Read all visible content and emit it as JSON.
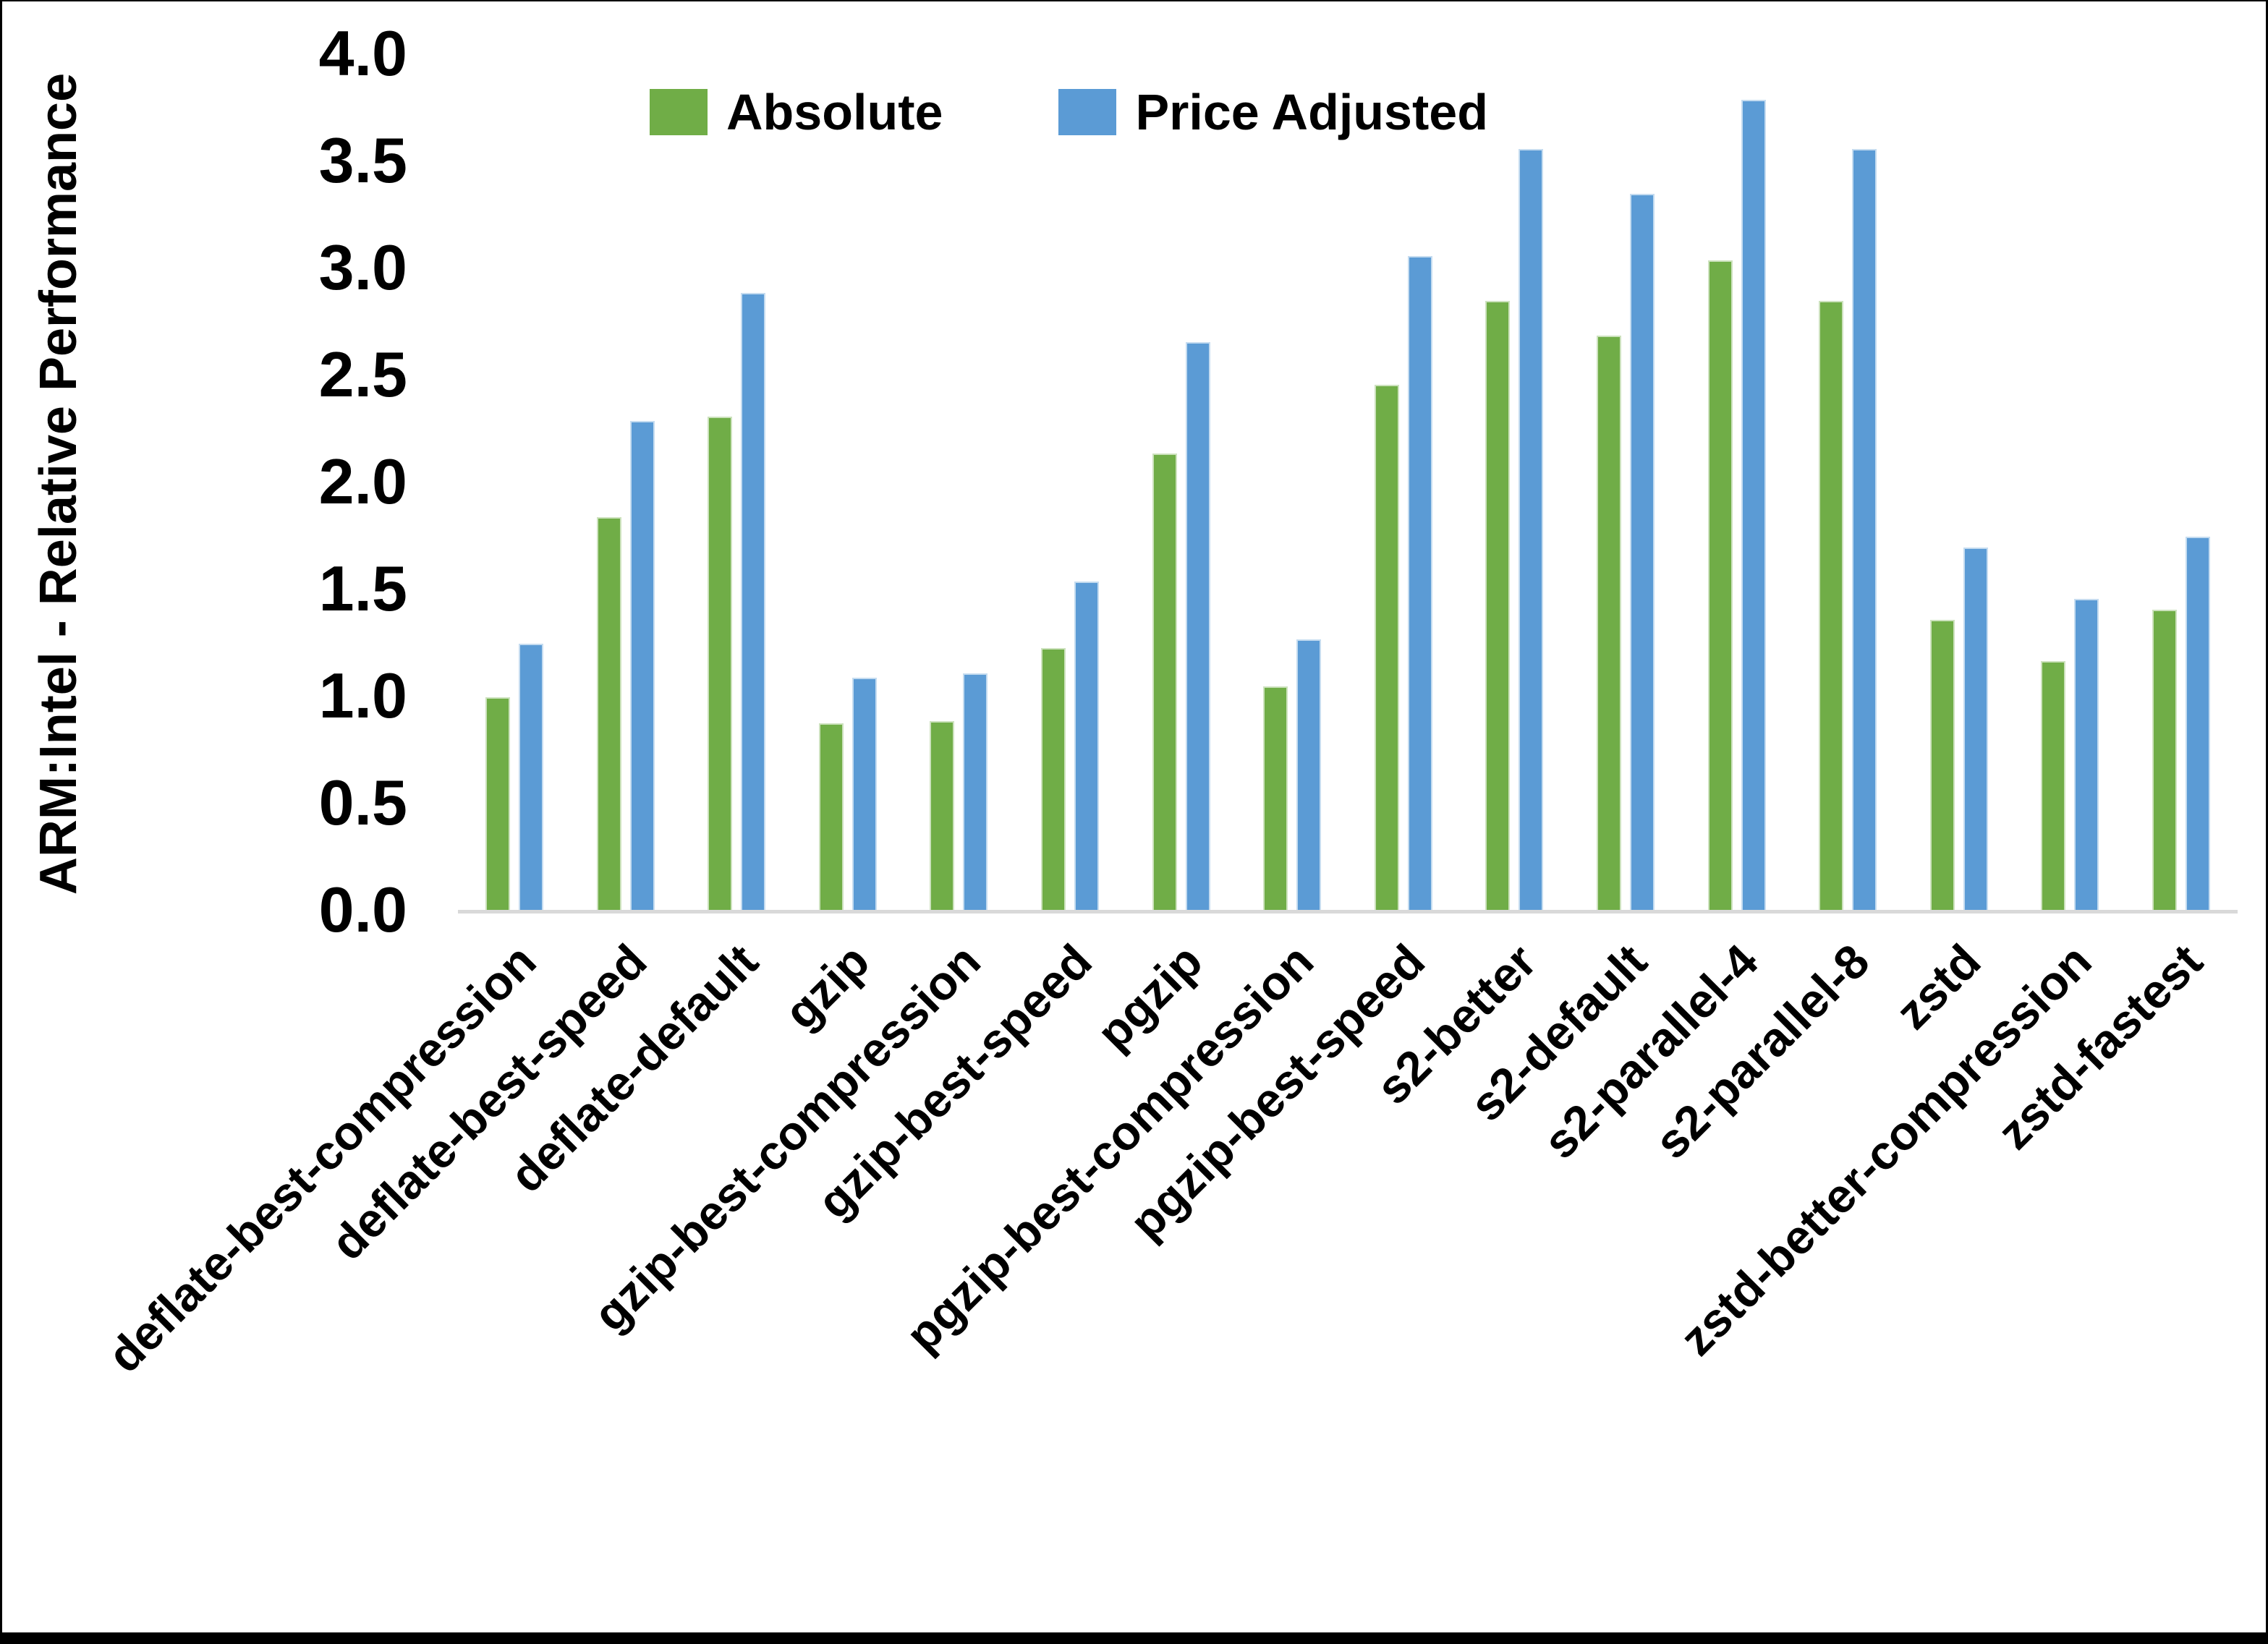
{
  "chart_data": {
    "type": "bar",
    "title": "",
    "xlabel": "",
    "ylabel": "ARM:Intel - Relative Performance",
    "ylim": [
      0.0,
      4.0
    ],
    "ytick_step": 0.5,
    "yticks": [
      "0.0",
      "0.5",
      "1.0",
      "1.5",
      "2.0",
      "2.5",
      "3.0",
      "3.5",
      "4.0"
    ],
    "grid": false,
    "legend_position": "top-center",
    "axis_line_color": "#D9D9D9",
    "text_color": "#000000",
    "categories": [
      "deflate-best-compression",
      "deflate-best-speed",
      "deflate-default",
      "gzip",
      "gzip-best-compression",
      "gzip-best-speed",
      "pgzip",
      "pgzip-best-compression",
      "pgzip-best-speed",
      "s2-better",
      "s2-default",
      "s2-parallel-4",
      "s2-parallel-8",
      "zstd",
      "zstd-better-compression",
      "zstd-fastest"
    ],
    "series": [
      {
        "name": "Absolute",
        "color": "#70AD47",
        "values": [
          1.0,
          1.84,
          2.31,
          0.88,
          0.89,
          1.23,
          2.14,
          1.05,
          2.46,
          2.85,
          2.69,
          3.04,
          2.85,
          1.36,
          1.17,
          1.41
        ]
      },
      {
        "name": "Price Adjusted",
        "color": "#5B9BD5",
        "values": [
          1.25,
          2.29,
          2.89,
          1.09,
          1.11,
          1.54,
          2.66,
          1.27,
          3.06,
          3.56,
          3.35,
          3.79,
          3.56,
          1.7,
          1.46,
          1.75
        ]
      }
    ]
  }
}
